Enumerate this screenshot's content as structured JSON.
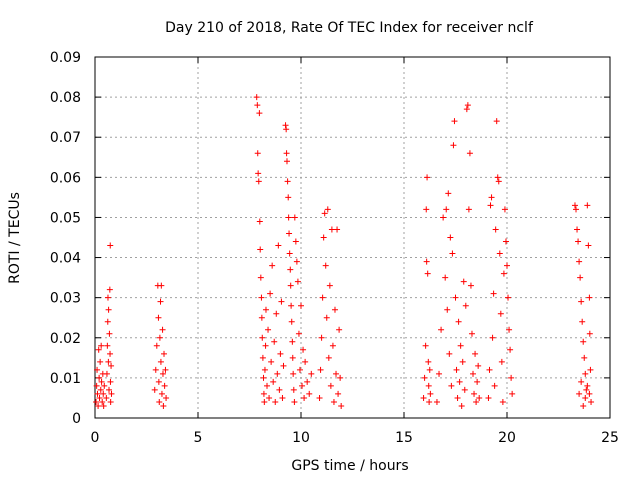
{
  "chart_data": {
    "type": "scatter",
    "title": "Day 210 of 2018, Rate Of TEC Index for receiver nclf",
    "xlabel": "GPS time / hours",
    "ylabel": "ROTI / TECUs",
    "xlim": [
      0,
      25
    ],
    "ylim": [
      0,
      0.09
    ],
    "x_ticks": [
      "0",
      "5",
      "10",
      "15",
      "20",
      "25"
    ],
    "y_ticks": [
      "0",
      "0.01",
      "0.02",
      "0.03",
      "0.04",
      "0.05",
      "0.06",
      "0.07",
      "0.08",
      "0.09"
    ],
    "grid": true,
    "marker": "+",
    "series_color": "#ff0000",
    "series": [
      {
        "name": "ROTI",
        "points": [
          [
            0.05,
            0.004
          ],
          [
            0.08,
            0.008
          ],
          [
            0.1,
            0.012
          ],
          [
            0.12,
            0.006
          ],
          [
            0.15,
            0.003
          ],
          [
            0.18,
            0.017
          ],
          [
            0.2,
            0.01
          ],
          [
            0.22,
            0.005
          ],
          [
            0.25,
            0.014
          ],
          [
            0.28,
            0.007
          ],
          [
            0.3,
            0.018
          ],
          [
            0.32,
            0.009
          ],
          [
            0.35,
            0.004
          ],
          [
            0.38,
            0.011
          ],
          [
            0.4,
            0.006
          ],
          [
            0.42,
            0.003
          ],
          [
            0.45,
            0.008
          ],
          [
            0.55,
            0.005
          ],
          [
            0.58,
            0.011
          ],
          [
            0.6,
            0.018
          ],
          [
            0.62,
            0.024
          ],
          [
            0.63,
            0.03
          ],
          [
            0.65,
            0.014
          ],
          [
            0.66,
            0.027
          ],
          [
            0.68,
            0.007
          ],
          [
            0.7,
            0.021
          ],
          [
            0.72,
            0.032
          ],
          [
            0.73,
            0.016
          ],
          [
            0.74,
            0.043
          ],
          [
            0.75,
            0.009
          ],
          [
            0.76,
            0.004
          ],
          [
            0.78,
            0.013
          ],
          [
            0.8,
            0.006
          ],
          [
            2.9,
            0.007
          ],
          [
            2.95,
            0.012
          ],
          [
            3.0,
            0.018
          ],
          [
            3.05,
            0.033
          ],
          [
            3.08,
            0.025
          ],
          [
            3.1,
            0.009
          ],
          [
            3.12,
            0.004
          ],
          [
            3.15,
            0.02
          ],
          [
            3.18,
            0.029
          ],
          [
            3.2,
            0.014
          ],
          [
            3.22,
            0.033
          ],
          [
            3.25,
            0.006
          ],
          [
            3.28,
            0.022
          ],
          [
            3.3,
            0.011
          ],
          [
            3.32,
            0.003
          ],
          [
            3.35,
            0.016
          ],
          [
            3.38,
            0.008
          ],
          [
            3.42,
            0.012
          ],
          [
            3.45,
            0.005
          ],
          [
            7.85,
            0.08
          ],
          [
            7.88,
            0.078
          ],
          [
            7.9,
            0.066
          ],
          [
            7.92,
            0.061
          ],
          [
            7.95,
            0.059
          ],
          [
            7.98,
            0.076
          ],
          [
            8.0,
            0.049
          ],
          [
            8.02,
            0.042
          ],
          [
            8.05,
            0.035
          ],
          [
            8.08,
            0.03
          ],
          [
            8.1,
            0.025
          ],
          [
            8.12,
            0.02
          ],
          [
            8.15,
            0.015
          ],
          [
            8.18,
            0.01
          ],
          [
            8.2,
            0.006
          ],
          [
            8.22,
            0.004
          ],
          [
            8.25,
            0.012
          ],
          [
            8.28,
            0.018
          ],
          [
            8.3,
            0.027
          ],
          [
            8.35,
            0.008
          ],
          [
            8.4,
            0.022
          ],
          [
            8.45,
            0.005
          ],
          [
            8.5,
            0.031
          ],
          [
            8.55,
            0.014
          ],
          [
            8.6,
            0.038
          ],
          [
            8.65,
            0.009
          ],
          [
            8.7,
            0.019
          ],
          [
            8.75,
            0.004
          ],
          [
            8.8,
            0.026
          ],
          [
            8.85,
            0.011
          ],
          [
            8.9,
            0.043
          ],
          [
            8.95,
            0.007
          ],
          [
            9.0,
            0.016
          ],
          [
            9.05,
            0.029
          ],
          [
            9.1,
            0.005
          ],
          [
            9.15,
            0.013
          ],
          [
            9.25,
            0.073
          ],
          [
            9.28,
            0.072
          ],
          [
            9.3,
            0.066
          ],
          [
            9.32,
            0.064
          ],
          [
            9.35,
            0.059
          ],
          [
            9.38,
            0.055
          ],
          [
            9.4,
            0.05
          ],
          [
            9.42,
            0.046
          ],
          [
            9.45,
            0.041
          ],
          [
            9.48,
            0.037
          ],
          [
            9.5,
            0.033
          ],
          [
            9.52,
            0.028
          ],
          [
            9.55,
            0.024
          ],
          [
            9.58,
            0.019
          ],
          [
            9.6,
            0.015
          ],
          [
            9.62,
            0.011
          ],
          [
            9.65,
            0.007
          ],
          [
            9.68,
            0.004
          ],
          [
            9.7,
            0.05
          ],
          [
            9.75,
            0.044
          ],
          [
            9.8,
            0.039
          ],
          [
            9.85,
            0.034
          ],
          [
            9.9,
            0.021
          ],
          [
            9.95,
            0.012
          ],
          [
            10.0,
            0.028
          ],
          [
            10.05,
            0.008
          ],
          [
            10.1,
            0.017
          ],
          [
            10.15,
            0.005
          ],
          [
            10.2,
            0.014
          ],
          [
            10.3,
            0.009
          ],
          [
            10.4,
            0.006
          ],
          [
            10.5,
            0.011
          ],
          [
            10.9,
            0.005
          ],
          [
            10.95,
            0.012
          ],
          [
            11.0,
            0.02
          ],
          [
            11.05,
            0.03
          ],
          [
            11.1,
            0.045
          ],
          [
            11.15,
            0.051
          ],
          [
            11.2,
            0.038
          ],
          [
            11.25,
            0.025
          ],
          [
            11.3,
            0.052
          ],
          [
            11.35,
            0.015
          ],
          [
            11.4,
            0.033
          ],
          [
            11.45,
            0.008
          ],
          [
            11.5,
            0.047
          ],
          [
            11.55,
            0.018
          ],
          [
            11.6,
            0.004
          ],
          [
            11.65,
            0.027
          ],
          [
            11.7,
            0.011
          ],
          [
            11.75,
            0.047
          ],
          [
            11.8,
            0.006
          ],
          [
            11.85,
            0.022
          ],
          [
            11.9,
            0.01
          ],
          [
            11.95,
            0.003
          ],
          [
            15.95,
            0.005
          ],
          [
            16.0,
            0.01
          ],
          [
            16.05,
            0.018
          ],
          [
            16.08,
            0.052
          ],
          [
            16.1,
            0.039
          ],
          [
            16.12,
            0.06
          ],
          [
            16.15,
            0.036
          ],
          [
            16.18,
            0.014
          ],
          [
            16.2,
            0.008
          ],
          [
            16.22,
            0.004
          ],
          [
            16.25,
            0.012
          ],
          [
            16.28,
            0.006
          ],
          [
            16.6,
            0.004
          ],
          [
            16.7,
            0.011
          ],
          [
            16.8,
            0.022
          ],
          [
            16.9,
            0.05
          ],
          [
            17.0,
            0.035
          ],
          [
            17.05,
            0.052
          ],
          [
            17.1,
            0.027
          ],
          [
            17.15,
            0.056
          ],
          [
            17.2,
            0.016
          ],
          [
            17.25,
            0.045
          ],
          [
            17.3,
            0.008
          ],
          [
            17.35,
            0.041
          ],
          [
            17.4,
            0.068
          ],
          [
            17.45,
            0.074
          ],
          [
            17.5,
            0.03
          ],
          [
            17.55,
            0.012
          ],
          [
            17.6,
            0.005
          ],
          [
            17.65,
            0.024
          ],
          [
            17.7,
            0.009
          ],
          [
            17.75,
            0.018
          ],
          [
            17.8,
            0.003
          ],
          [
            17.85,
            0.014
          ],
          [
            17.9,
            0.034
          ],
          [
            17.95,
            0.007
          ],
          [
            18.0,
            0.028
          ],
          [
            18.05,
            0.077
          ],
          [
            18.1,
            0.078
          ],
          [
            18.15,
            0.052
          ],
          [
            18.2,
            0.066
          ],
          [
            18.25,
            0.033
          ],
          [
            18.3,
            0.021
          ],
          [
            18.35,
            0.011
          ],
          [
            18.4,
            0.006
          ],
          [
            18.45,
            0.016
          ],
          [
            18.5,
            0.004
          ],
          [
            18.55,
            0.009
          ],
          [
            18.6,
            0.013
          ],
          [
            18.65,
            0.005
          ],
          [
            19.1,
            0.005
          ],
          [
            19.15,
            0.012
          ],
          [
            19.2,
            0.053
          ],
          [
            19.25,
            0.055
          ],
          [
            19.3,
            0.02
          ],
          [
            19.35,
            0.031
          ],
          [
            19.4,
            0.008
          ],
          [
            19.45,
            0.047
          ],
          [
            19.5,
            0.074
          ],
          [
            19.55,
            0.06
          ],
          [
            19.6,
            0.059
          ],
          [
            19.65,
            0.041
          ],
          [
            19.7,
            0.026
          ],
          [
            19.75,
            0.014
          ],
          [
            19.8,
            0.004
          ],
          [
            19.85,
            0.036
          ],
          [
            19.9,
            0.052
          ],
          [
            19.95,
            0.044
          ],
          [
            20.0,
            0.038
          ],
          [
            20.05,
            0.03
          ],
          [
            20.1,
            0.022
          ],
          [
            20.15,
            0.017
          ],
          [
            20.2,
            0.01
          ],
          [
            20.25,
            0.006
          ],
          [
            23.3,
            0.053
          ],
          [
            23.35,
            0.052
          ],
          [
            23.4,
            0.047
          ],
          [
            23.45,
            0.044
          ],
          [
            23.5,
            0.039
          ],
          [
            23.55,
            0.035
          ],
          [
            23.6,
            0.029
          ],
          [
            23.65,
            0.024
          ],
          [
            23.7,
            0.019
          ],
          [
            23.75,
            0.015
          ],
          [
            23.8,
            0.011
          ],
          [
            23.85,
            0.007
          ],
          [
            23.9,
            0.053
          ],
          [
            23.95,
            0.043
          ],
          [
            24.0,
            0.03
          ],
          [
            24.02,
            0.021
          ],
          [
            24.05,
            0.012
          ],
          [
            24.08,
            0.004
          ],
          [
            23.5,
            0.006
          ],
          [
            23.6,
            0.009
          ],
          [
            23.7,
            0.003
          ],
          [
            23.8,
            0.005
          ],
          [
            23.9,
            0.008
          ],
          [
            24.0,
            0.006
          ]
        ]
      }
    ]
  }
}
